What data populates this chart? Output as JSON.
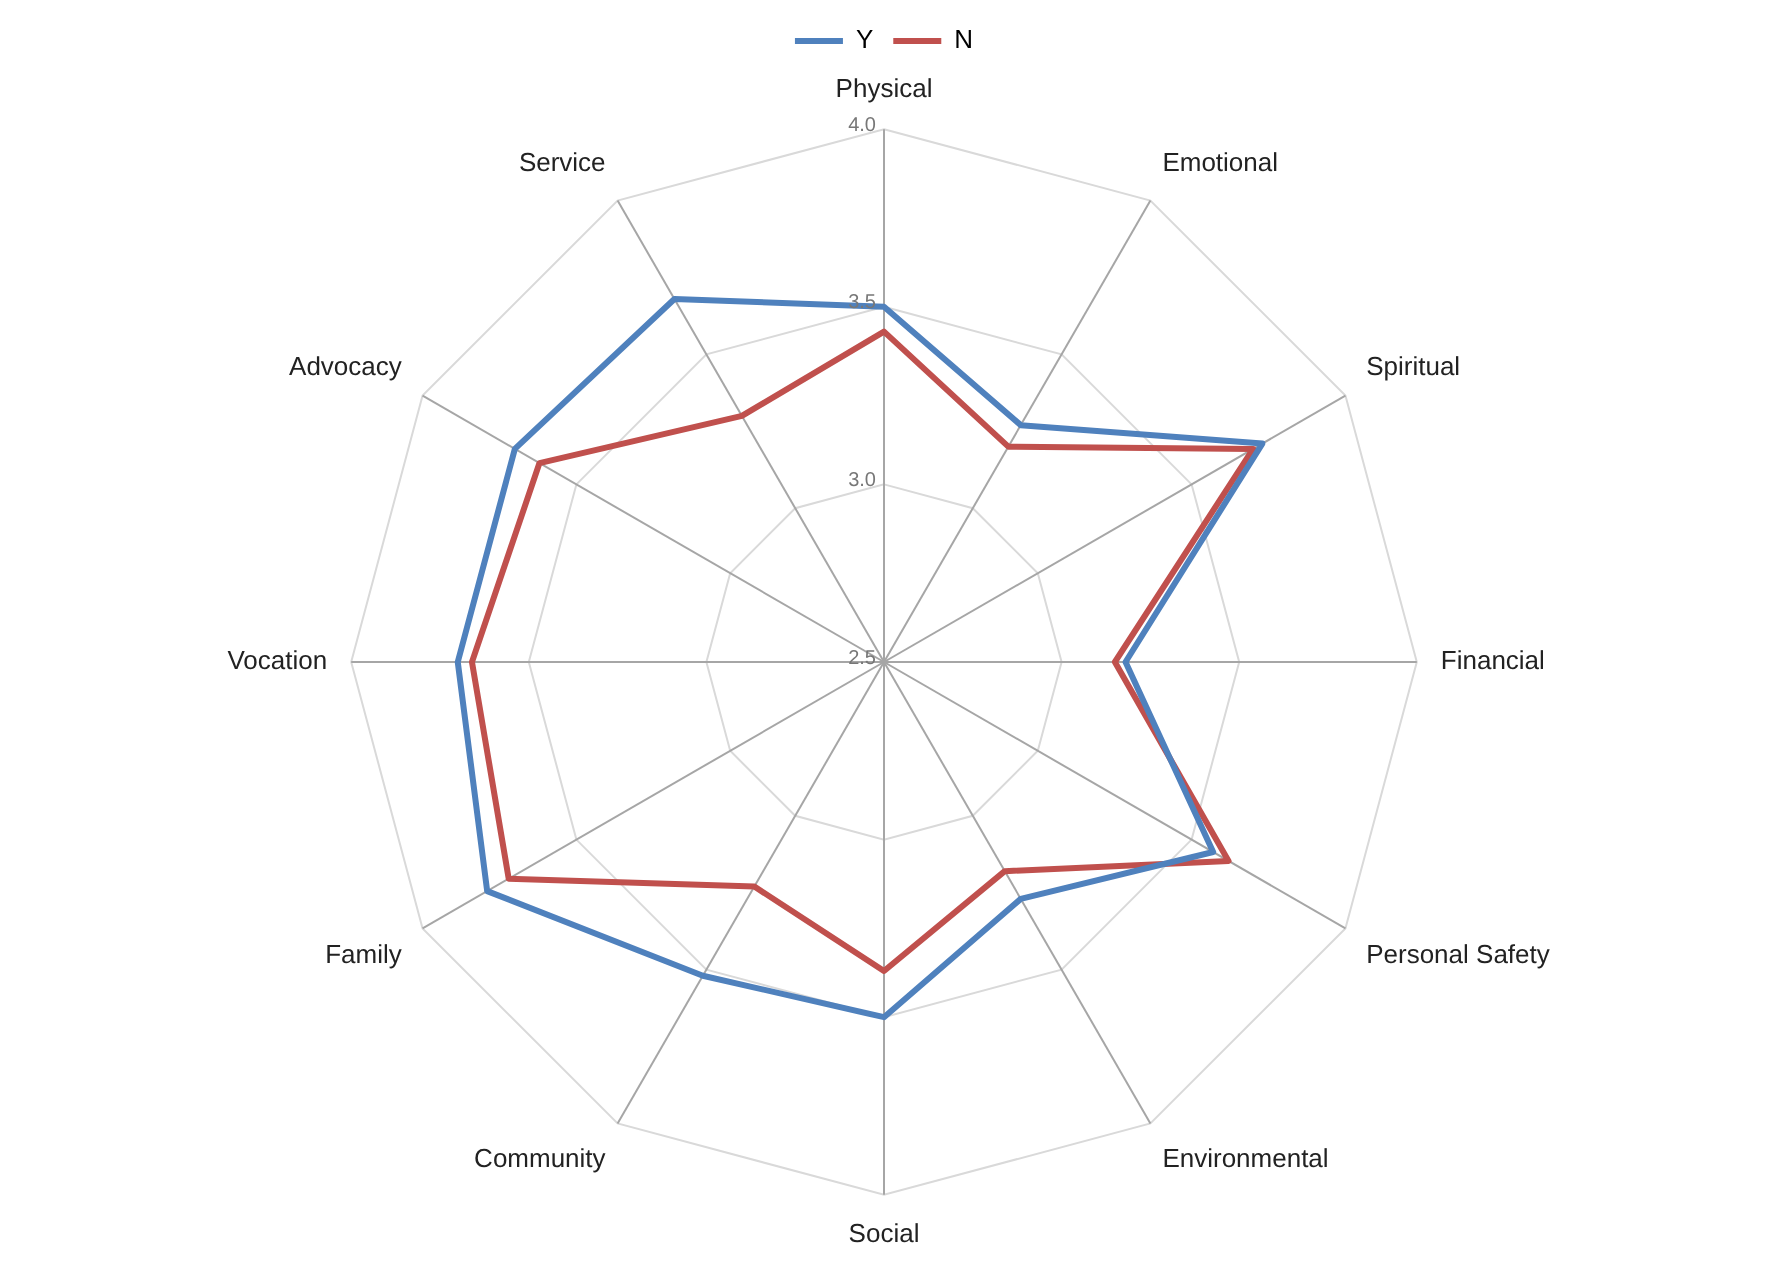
{
  "chart_data": {
    "type": "radar",
    "categories": [
      "Physical",
      "Emotional",
      "Spiritual",
      "Financial",
      "Personal Safety",
      "Environmental",
      "Social",
      "Community",
      "Family",
      "Vocation",
      "Advocacy",
      "Service"
    ],
    "series": [
      {
        "name": "Y",
        "color": "#4f81bd",
        "values": [
          3.5,
          3.27,
          3.73,
          3.18,
          3.57,
          3.27,
          3.5,
          3.52,
          3.79,
          3.7,
          3.7,
          3.68
        ]
      },
      {
        "name": "N",
        "color": "#c0504d",
        "values": [
          3.43,
          3.2,
          3.7,
          3.15,
          3.62,
          3.18,
          3.37,
          3.23,
          3.72,
          3.66,
          3.62,
          3.3
        ]
      }
    ],
    "ylim": [
      2.5,
      4.0
    ],
    "yticks": [
      2.5,
      {
        "value": 3,
        "label": "3.0"
      },
      3.5,
      {
        "value": 4,
        "label": "4.0"
      }
    ],
    "grid": true,
    "legend": "top",
    "marker": "none",
    "line_style": "solid"
  }
}
